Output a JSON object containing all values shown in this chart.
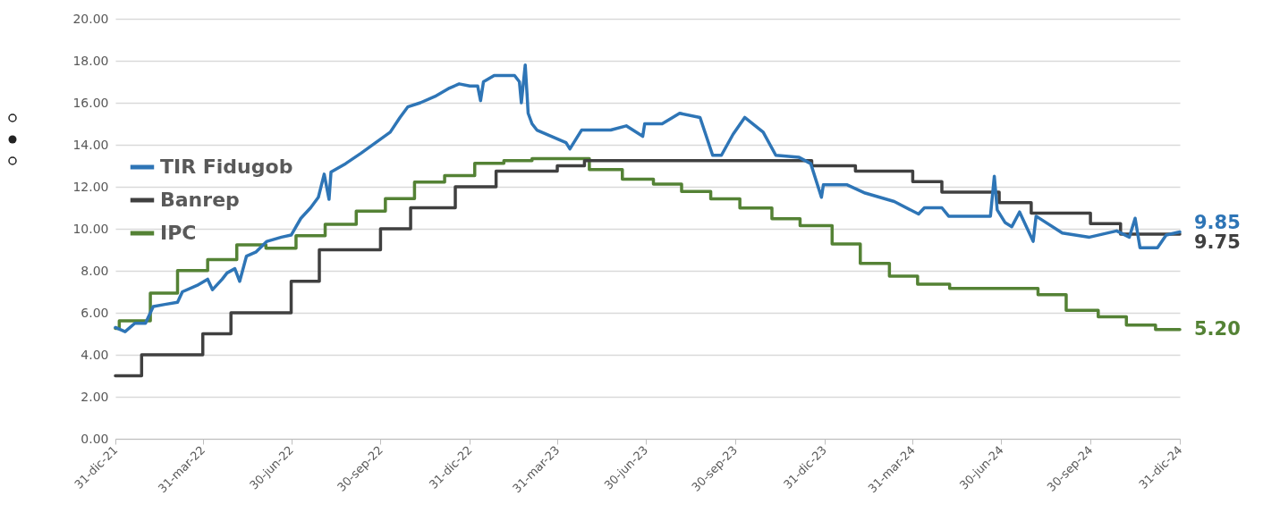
{
  "chart_data": {
    "type": "line",
    "xlim": [
      "2021-12-31",
      "2024-12-31"
    ],
    "ylim": [
      0,
      20
    ],
    "xticks": [
      {
        "value": "2021-12-31",
        "label": "31-dic-21"
      },
      {
        "value": "2022-03-31",
        "label": "31-mar-22"
      },
      {
        "value": "2022-06-30",
        "label": "30-jun-22"
      },
      {
        "value": "2022-09-30",
        "label": "30-sep-22"
      },
      {
        "value": "2022-12-31",
        "label": "31-dic-22"
      },
      {
        "value": "2023-03-31",
        "label": "31-mar-23"
      },
      {
        "value": "2023-06-30",
        "label": "30-jun-23"
      },
      {
        "value": "2023-09-30",
        "label": "30-sep-23"
      },
      {
        "value": "2023-12-31",
        "label": "31-dic-23"
      },
      {
        "value": "2024-03-31",
        "label": "31-mar-24"
      },
      {
        "value": "2024-06-30",
        "label": "30-jun-24"
      },
      {
        "value": "2024-09-30",
        "label": "30-sep-24"
      },
      {
        "value": "2024-12-31",
        "label": "31-dic-24"
      }
    ],
    "yticks": [
      {
        "value": 0,
        "label": "0.00"
      },
      {
        "value": 2,
        "label": "2.00"
      },
      {
        "value": 4,
        "label": "4.00"
      },
      {
        "value": 6,
        "label": "6.00"
      },
      {
        "value": 8,
        "label": "8.00"
      },
      {
        "value": 10,
        "label": "10.00"
      },
      {
        "value": 12,
        "label": "12.00"
      },
      {
        "value": 14,
        "label": "14.00"
      },
      {
        "value": 16,
        "label": "16.00"
      },
      {
        "value": 18,
        "label": "18.00"
      },
      {
        "value": 20,
        "label": "20.00"
      }
    ],
    "grid": "y",
    "legend": "left",
    "marker": "none",
    "series": [
      {
        "name": "TIR Fidugob",
        "color": "#2e75b6",
        "type": "line",
        "x": [
          "2021-12-31",
          "2022-01-10",
          "2022-01-20",
          "2022-01-31",
          "2022-02-08",
          "2022-02-20",
          "2022-03-05",
          "2022-03-10",
          "2022-03-25",
          "2022-04-05",
          "2022-04-10",
          "2022-04-20",
          "2022-04-25",
          "2022-05-03",
          "2022-05-08",
          "2022-05-15",
          "2022-05-25",
          "2022-06-05",
          "2022-06-20",
          "2022-06-30",
          "2022-07-10",
          "2022-07-20",
          "2022-07-28",
          "2022-08-03",
          "2022-08-08",
          "2022-08-10",
          "2022-08-25",
          "2022-09-10",
          "2022-09-25",
          "2022-10-10",
          "2022-10-20",
          "2022-10-28",
          "2022-11-10",
          "2022-11-25",
          "2022-12-10",
          "2022-12-20",
          "2022-12-31",
          "2023-01-08",
          "2023-01-11",
          "2023-01-14",
          "2023-01-25",
          "2023-02-05",
          "2023-02-15",
          "2023-02-20",
          "2023-02-22",
          "2023-02-26",
          "2023-02-28",
          "2023-03-01",
          "2023-03-05",
          "2023-03-10",
          "2023-03-25",
          "2023-04-09",
          "2023-04-13",
          "2023-04-25",
          "2023-05-25",
          "2023-06-10",
          "2023-06-27",
          "2023-06-29",
          "2023-07-17",
          "2023-08-04",
          "2023-08-25",
          "2023-09-07",
          "2023-09-16",
          "2023-09-28",
          "2023-10-10",
          "2023-10-29",
          "2023-11-11",
          "2023-12-05",
          "2023-12-17",
          "2023-12-28",
          "2023-12-30",
          "2024-01-23",
          "2024-02-11",
          "2024-03-12",
          "2024-04-06",
          "2024-04-12",
          "2024-04-30",
          "2024-05-07",
          "2024-06-19",
          "2024-06-23",
          "2024-06-26",
          "2024-07-04",
          "2024-07-11",
          "2024-07-19",
          "2024-08-02",
          "2024-08-05",
          "2024-09-01",
          "2024-09-29",
          "2024-10-27",
          "2024-11-09",
          "2024-11-15",
          "2024-11-20",
          "2024-12-08",
          "2024-12-17",
          "2024-12-31"
        ],
        "values": [
          5.3,
          5.1,
          5.5,
          5.5,
          6.3,
          6.4,
          6.5,
          7.0,
          7.3,
          7.6,
          7.1,
          7.6,
          7.9,
          8.1,
          7.5,
          8.7,
          8.9,
          9.4,
          9.6,
          9.7,
          10.5,
          11.0,
          11.5,
          12.6,
          11.4,
          12.7,
          13.1,
          13.6,
          14.1,
          14.6,
          15.3,
          15.8,
          16.0,
          16.3,
          16.7,
          16.9,
          16.8,
          16.8,
          16.1,
          17.0,
          17.3,
          17.3,
          17.3,
          17.0,
          16.0,
          17.8,
          16.3,
          15.5,
          15.0,
          14.7,
          14.4,
          14.1,
          13.8,
          14.7,
          14.7,
          14.9,
          14.4,
          15.0,
          15.0,
          15.5,
          15.3,
          13.5,
          13.5,
          14.5,
          15.3,
          14.6,
          13.5,
          13.4,
          13.1,
          11.5,
          12.1,
          12.1,
          11.7,
          11.3,
          10.7,
          11.0,
          11.0,
          10.6,
          10.6,
          12.5,
          10.9,
          10.3,
          10.1,
          10.8,
          9.4,
          10.6,
          9.8,
          9.6,
          9.9,
          9.6,
          10.5,
          9.1,
          9.1,
          9.7,
          9.85
        ]
      },
      {
        "name": "Banrep",
        "color": "#404040",
        "type": "step",
        "x": [
          "2021-12-31",
          "2022-01-27",
          "2022-03-31",
          "2022-04-29",
          "2022-06-30",
          "2022-07-29",
          "2022-09-30",
          "2022-10-31",
          "2022-12-16",
          "2023-01-27",
          "2023-03-31",
          "2023-04-28",
          "2023-12-18",
          "2024-02-01",
          "2024-03-31",
          "2024-04-30",
          "2024-06-28",
          "2024-07-31",
          "2024-09-30",
          "2024-10-31",
          "2024-12-31"
        ],
        "values": [
          3.0,
          4.0,
          5.0,
          6.0,
          7.5,
          9.0,
          10.0,
          11.0,
          12.0,
          12.75,
          13.0,
          13.25,
          13.0,
          12.75,
          12.25,
          11.75,
          11.25,
          10.75,
          10.25,
          9.75,
          9.75
        ]
      },
      {
        "name": "IPC",
        "color": "#548235",
        "type": "step",
        "x": [
          "2021-12-31",
          "2022-01-04",
          "2022-02-05",
          "2022-03-05",
          "2022-04-05",
          "2022-05-05",
          "2022-06-04",
          "2022-07-05",
          "2022-08-04",
          "2022-09-05",
          "2022-10-05",
          "2022-11-04",
          "2022-12-05",
          "2023-01-05",
          "2023-02-04",
          "2023-03-05",
          "2023-05-03",
          "2023-06-06",
          "2023-07-08",
          "2023-08-06",
          "2023-09-05",
          "2023-10-05",
          "2023-11-07",
          "2023-12-06",
          "2024-01-08",
          "2024-02-06",
          "2024-03-07",
          "2024-04-05",
          "2024-05-08",
          "2024-08-07",
          "2024-09-05",
          "2024-10-08",
          "2024-11-06",
          "2024-12-06",
          "2024-12-31"
        ],
        "values": [
          5.26,
          5.62,
          6.94,
          8.01,
          8.53,
          9.23,
          9.07,
          9.67,
          10.21,
          10.84,
          11.44,
          12.22,
          12.53,
          13.12,
          13.25,
          13.34,
          12.82,
          12.36,
          12.13,
          11.78,
          11.43,
          10.99,
          10.48,
          10.15,
          9.28,
          8.35,
          7.74,
          7.36,
          7.16,
          6.86,
          6.12,
          5.81,
          5.41,
          5.2,
          5.2
        ]
      }
    ],
    "annotations": [
      {
        "text": "9.85",
        "x": "2024-12-31",
        "y": 9.85
      },
      {
        "text": "9.75",
        "x": "2024-12-31",
        "y": 9.75
      },
      {
        "text": "5.20",
        "x": "2024-12-31",
        "y": 5.2
      }
    ]
  }
}
